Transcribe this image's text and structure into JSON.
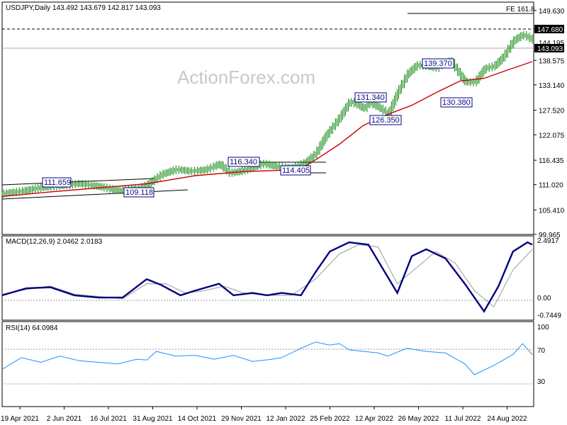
{
  "chart_data": {
    "type": "candlestick",
    "symbol_line": "USDJPY,Daily  143.492 143.679 142.817 143.093",
    "watermark": "ActionForex.com",
    "x_tick_labels": [
      "19 Apr 2021",
      "2 Jun 2021",
      "16 Jul 2021",
      "31 Aug 2021",
      "14 Oct 2021",
      "29 Nov 2021",
      "12 Jan 2022",
      "25 Feb 2022",
      "12 Apr 2022",
      "26 May 2022",
      "11 Jul 2022",
      "24 Aug 2022"
    ],
    "price_panel": {
      "y_tick_labels": [
        "149.630",
        "144.195",
        "138.575",
        "133.140",
        "127.520",
        "122.075",
        "116.435",
        "111.020",
        "105.410",
        "99.965"
      ],
      "ylim": [
        99.965,
        151.5
      ],
      "last_price_tag": "143.093",
      "level_tag": "147.680",
      "fe_label": "FE 161.8",
      "callouts": [
        "111.659",
        "109.118",
        "116.340",
        "114.405",
        "131.340",
        "126.350",
        "139.370",
        "130.380"
      ],
      "price_path": [
        [
          0,
          109.0
        ],
        [
          0.04,
          109.6
        ],
        [
          0.08,
          110.4
        ],
        [
          0.12,
          110.8
        ],
        [
          0.16,
          111.3
        ],
        [
          0.2,
          110.6
        ],
        [
          0.24,
          109.7
        ],
        [
          0.28,
          110.1
        ],
        [
          0.3,
          111.0
        ],
        [
          0.33,
          113.3
        ],
        [
          0.36,
          114.4
        ],
        [
          0.39,
          114.0
        ],
        [
          0.42,
          114.3
        ],
        [
          0.43,
          114.7
        ],
        [
          0.45,
          115.6
        ],
        [
          0.47,
          113.6
        ],
        [
          0.49,
          113.9
        ],
        [
          0.52,
          114.9
        ],
        [
          0.54,
          115.7
        ],
        [
          0.57,
          115.0
        ],
        [
          0.6,
          114.7
        ],
        [
          0.63,
          116.0
        ],
        [
          0.65,
          118.0
        ],
        [
          0.67,
          121.8
        ],
        [
          0.7,
          126.0
        ],
        [
          0.72,
          129.5
        ],
        [
          0.74,
          128.6
        ],
        [
          0.75,
          127.8
        ],
        [
          0.76,
          129.3
        ],
        [
          0.78,
          128.2
        ],
        [
          0.8,
          126.7
        ],
        [
          0.82,
          131.6
        ],
        [
          0.84,
          135.6
        ],
        [
          0.86,
          137.6
        ],
        [
          0.88,
          137.3
        ],
        [
          0.9,
          136.9
        ],
        [
          0.91,
          137.8
        ],
        [
          0.93,
          138.5
        ],
        [
          0.95,
          135.2
        ],
        [
          0.96,
          133.8
        ],
        [
          0.98,
          133.7
        ],
        [
          1.0,
          136.8
        ],
        [
          1.02,
          137.3
        ],
        [
          1.04,
          139.5
        ],
        [
          1.06,
          143.0
        ],
        [
          1.08,
          144.3
        ],
        [
          1.1,
          143.1
        ]
      ],
      "ma_path": [
        [
          0,
          108.4
        ],
        [
          0.1,
          109.4
        ],
        [
          0.2,
          110.3
        ],
        [
          0.3,
          111.2
        ],
        [
          0.4,
          113.0
        ],
        [
          0.5,
          113.9
        ],
        [
          0.6,
          114.3
        ],
        [
          0.63,
          115.2
        ],
        [
          0.65,
          116.5
        ],
        [
          0.7,
          120.0
        ],
        [
          0.75,
          124.2
        ],
        [
          0.8,
          126.6
        ],
        [
          0.85,
          128.6
        ],
        [
          0.9,
          131.4
        ],
        [
          0.95,
          134.0
        ],
        [
          1.0,
          134.6
        ],
        [
          1.05,
          136.5
        ],
        [
          1.1,
          138.3
        ]
      ]
    },
    "macd_panel": {
      "label": "MACD(12,26,9) 2.0462 2.0183",
      "y_tick_labels": [
        "2.4917",
        "0.00",
        "-0.7449"
      ],
      "ylim": [
        -0.95,
        2.65
      ],
      "macd_path": [
        [
          0,
          0.1
        ],
        [
          0.05,
          0.4
        ],
        [
          0.1,
          0.45
        ],
        [
          0.15,
          0.1
        ],
        [
          0.2,
          0.0
        ],
        [
          0.25,
          0.0
        ],
        [
          0.3,
          0.8
        ],
        [
          0.33,
          0.55
        ],
        [
          0.37,
          0.1
        ],
        [
          0.4,
          0.3
        ],
        [
          0.45,
          0.6
        ],
        [
          0.48,
          0.1
        ],
        [
          0.52,
          0.2
        ],
        [
          0.55,
          0.1
        ],
        [
          0.58,
          0.2
        ],
        [
          0.62,
          0.1
        ],
        [
          0.65,
          1.1
        ],
        [
          0.68,
          2.0
        ],
        [
          0.72,
          2.4
        ],
        [
          0.76,
          2.3
        ],
        [
          0.8,
          0.9
        ],
        [
          0.82,
          0.2
        ],
        [
          0.85,
          1.8
        ],
        [
          0.88,
          2.1
        ],
        [
          0.92,
          1.7
        ],
        [
          0.96,
          0.6
        ],
        [
          1.0,
          -0.6
        ],
        [
          1.03,
          0.5
        ],
        [
          1.06,
          2.0
        ],
        [
          1.09,
          2.4
        ],
        [
          1.1,
          2.3
        ]
      ],
      "signal_path": [
        [
          0,
          0.15
        ],
        [
          0.05,
          0.35
        ],
        [
          0.1,
          0.5
        ],
        [
          0.15,
          0.15
        ],
        [
          0.2,
          0.05
        ],
        [
          0.25,
          -0.05
        ],
        [
          0.3,
          0.6
        ],
        [
          0.34,
          0.6
        ],
        [
          0.38,
          0.2
        ],
        [
          0.42,
          0.3
        ],
        [
          0.46,
          0.5
        ],
        [
          0.5,
          0.2
        ],
        [
          0.55,
          0.1
        ],
        [
          0.6,
          0.1
        ],
        [
          0.65,
          0.8
        ],
        [
          0.7,
          1.9
        ],
        [
          0.74,
          2.3
        ],
        [
          0.78,
          2.2
        ],
        [
          0.82,
          0.6
        ],
        [
          0.86,
          1.3
        ],
        [
          0.9,
          2.0
        ],
        [
          0.94,
          1.5
        ],
        [
          0.98,
          0.3
        ],
        [
          1.02,
          -0.4
        ],
        [
          1.06,
          1.2
        ],
        [
          1.1,
          2.1
        ]
      ]
    },
    "rsi_panel": {
      "label": "RSI(14) 64.0984",
      "y_tick_labels": [
        "100",
        "70",
        "30"
      ],
      "ylim": [
        0,
        100
      ],
      "rsi_path": [
        [
          0,
          45
        ],
        [
          0.04,
          60
        ],
        [
          0.08,
          54
        ],
        [
          0.12,
          62
        ],
        [
          0.16,
          56
        ],
        [
          0.2,
          54
        ],
        [
          0.24,
          52
        ],
        [
          0.28,
          58
        ],
        [
          0.3,
          57
        ],
        [
          0.32,
          68
        ],
        [
          0.36,
          62
        ],
        [
          0.4,
          63
        ],
        [
          0.44,
          58
        ],
        [
          0.48,
          63
        ],
        [
          0.52,
          55
        ],
        [
          0.56,
          58
        ],
        [
          0.58,
          60
        ],
        [
          0.62,
          72
        ],
        [
          0.65,
          80
        ],
        [
          0.68,
          76
        ],
        [
          0.7,
          78
        ],
        [
          0.72,
          70
        ],
        [
          0.75,
          68
        ],
        [
          0.78,
          66
        ],
        [
          0.8,
          62
        ],
        [
          0.84,
          72
        ],
        [
          0.88,
          68
        ],
        [
          0.92,
          66
        ],
        [
          0.96,
          52
        ],
        [
          0.98,
          38
        ],
        [
          1.02,
          50
        ],
        [
          1.06,
          64
        ],
        [
          1.08,
          78
        ],
        [
          1.1,
          64
        ]
      ]
    },
    "colors": {
      "candle": "#008000",
      "ma": "#cc0000",
      "macd": "#000080",
      "signal": "#aaaaaa",
      "rsi": "#1e90ff",
      "callout_border": "#000080",
      "tag_bg": "#000000"
    }
  }
}
